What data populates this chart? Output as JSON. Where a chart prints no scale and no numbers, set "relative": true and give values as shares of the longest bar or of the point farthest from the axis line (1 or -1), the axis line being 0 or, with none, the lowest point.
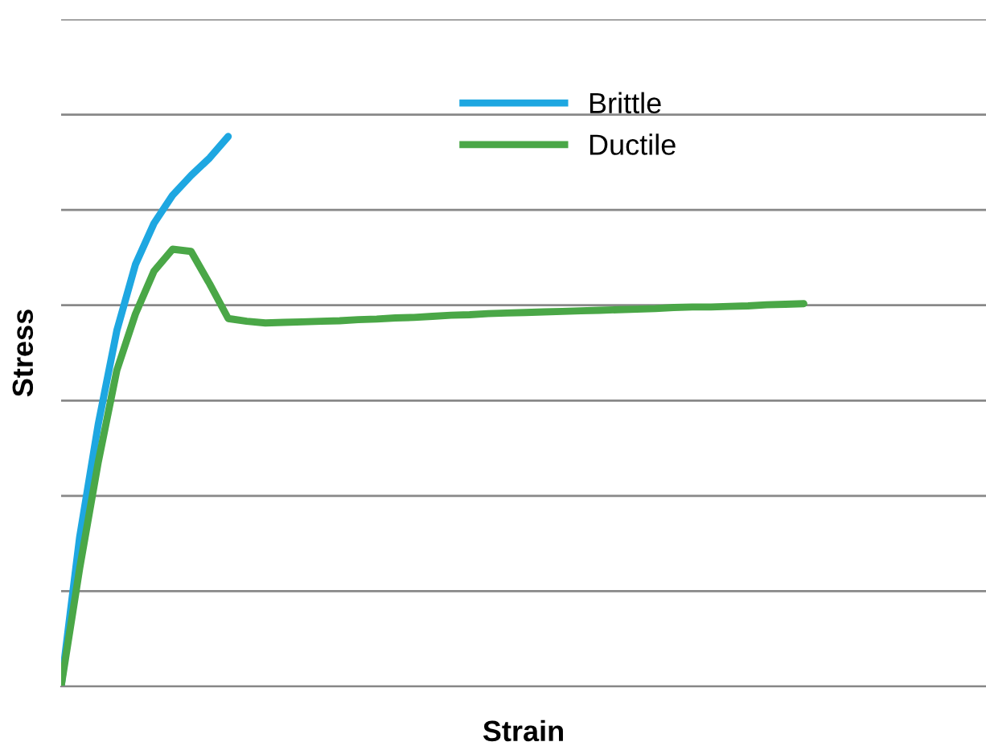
{
  "chart_data": {
    "type": "line",
    "xlabel": "Strain",
    "ylabel": "Stress",
    "relative": true,
    "grid": "y",
    "legend": "top",
    "line_style": "solid",
    "categories": [
      null,
      null,
      null,
      null,
      null,
      null,
      null,
      null,
      null,
      null,
      null,
      null,
      null,
      null,
      null,
      null,
      null,
      null,
      null,
      null,
      null,
      null,
      null,
      null,
      null,
      null,
      null,
      null,
      null,
      null,
      null,
      null,
      null,
      null,
      null,
      null,
      null,
      null,
      null,
      null,
      null
    ],
    "series": [
      {
        "name": "Brittle",
        "color": "#1ea7e1",
        "values": [
          0,
          0.272,
          0.477,
          0.647,
          0.767,
          0.842,
          0.893,
          0.929,
          0.961,
          1,
          null,
          null,
          null,
          null,
          null,
          null,
          null,
          null,
          null,
          null,
          null,
          null,
          null,
          null,
          null,
          null,
          null,
          null,
          null,
          null,
          null,
          null,
          null,
          null,
          null,
          null,
          null,
          null,
          null,
          null,
          null
        ]
      },
      {
        "name": "Ductile",
        "color": "#4aa747",
        "values": [
          0,
          0.215,
          0.408,
          0.575,
          0.677,
          0.755,
          0.795,
          0.791,
          0.732,
          0.669,
          0.664,
          0.661,
          0.662,
          0.663,
          0.664,
          0.665,
          0.667,
          0.668,
          0.67,
          0.671,
          0.673,
          0.675,
          0.676,
          0.678,
          0.679,
          0.68,
          0.681,
          0.682,
          0.683,
          0.684,
          0.685,
          0.686,
          0.687,
          0.689,
          0.69,
          0.69,
          0.691,
          0.692,
          0.694,
          0.695,
          0.696
        ]
      }
    ]
  }
}
